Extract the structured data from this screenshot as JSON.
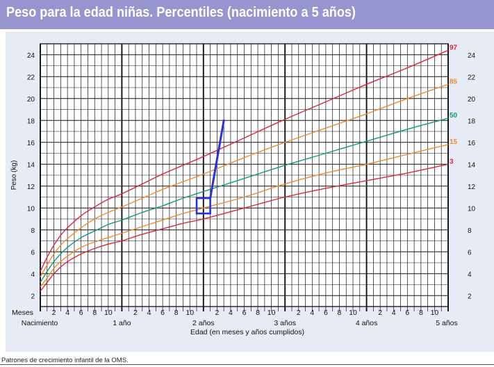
{
  "header": {
    "title": "Peso para la edad niñas. Percentiles (nacimiento a 5 años)"
  },
  "footer": {
    "source": "Patrones de crecimiento infantil de la OMS."
  },
  "colors": {
    "title_bg": "#9795cf",
    "panel_bg": "#e6ebf6",
    "p3": "#e0243c",
    "p15": "#ef8a2e",
    "p50": "#0f9b74",
    "p85": "#ef8a2e",
    "p97": "#e0243c",
    "annotation": "#2b2fd9"
  },
  "chart_data": {
    "type": "line",
    "title": "Peso para la edad niñas. Percentiles (nacimiento a 5 años)",
    "xlabel": "Edad (en meses y años cumplidos)",
    "ylabel": "Peso (kg)",
    "xlim": [
      0,
      60
    ],
    "ylim": [
      1,
      25
    ],
    "grid": true,
    "y_ticks": [
      2,
      4,
      6,
      8,
      10,
      12,
      14,
      16,
      18,
      20,
      22,
      24
    ],
    "x_month_ticks": [
      {
        "month": 2,
        "label": "2"
      },
      {
        "month": 4,
        "label": "4"
      },
      {
        "month": 6,
        "label": "6"
      },
      {
        "month": 8,
        "label": "8"
      },
      {
        "month": 10,
        "label": "10"
      },
      {
        "month": 14,
        "label": "2"
      },
      {
        "month": 16,
        "label": "4"
      },
      {
        "month": 18,
        "label": "6"
      },
      {
        "month": 20,
        "label": "8"
      },
      {
        "month": 22,
        "label": "10"
      },
      {
        "month": 26,
        "label": "2"
      },
      {
        "month": 28,
        "label": "4"
      },
      {
        "month": 30,
        "label": "6"
      },
      {
        "month": 32,
        "label": "8"
      },
      {
        "month": 34,
        "label": "10"
      },
      {
        "month": 38,
        "label": "2"
      },
      {
        "month": 40,
        "label": "4"
      },
      {
        "month": 42,
        "label": "6"
      },
      {
        "month": 44,
        "label": "8"
      },
      {
        "month": 46,
        "label": "10"
      },
      {
        "month": 50,
        "label": "2"
      },
      {
        "month": 52,
        "label": "4"
      },
      {
        "month": 54,
        "label": "6"
      },
      {
        "month": 56,
        "label": "8"
      },
      {
        "month": 58,
        "label": "10"
      }
    ],
    "x_month_row_label": "Meses",
    "x_year_ticks": [
      {
        "month": 0,
        "label": "Nacimiento"
      },
      {
        "month": 12,
        "label": "1 año"
      },
      {
        "month": 24,
        "label": "2 años"
      },
      {
        "month": 36,
        "label": "3 años"
      },
      {
        "month": 48,
        "label": "4 años"
      },
      {
        "month": 60,
        "label": "5 años"
      }
    ],
    "x": [
      0,
      1,
      2,
      3,
      4,
      6,
      8,
      10,
      12,
      15,
      18,
      21,
      24,
      30,
      36,
      42,
      48,
      54,
      60
    ],
    "series": [
      {
        "name": "3",
        "color_key": "p3",
        "values": [
          2.4,
          3.2,
          4.0,
          4.6,
          5.1,
          5.8,
          6.3,
          6.7,
          7.0,
          7.6,
          8.1,
          8.6,
          9.0,
          10.0,
          11.0,
          11.8,
          12.5,
          13.2,
          14.0
        ]
      },
      {
        "name": "15",
        "color_key": "p15",
        "values": [
          2.8,
          3.6,
          4.5,
          5.1,
          5.6,
          6.4,
          6.9,
          7.3,
          7.7,
          8.3,
          8.9,
          9.5,
          10.0,
          11.0,
          12.2,
          13.2,
          14.0,
          14.9,
          15.8
        ]
      },
      {
        "name": "50",
        "color_key": "p50",
        "values": [
          3.2,
          4.2,
          5.1,
          5.8,
          6.4,
          7.3,
          7.9,
          8.5,
          8.9,
          9.6,
          10.2,
          10.9,
          11.5,
          12.7,
          13.9,
          15.0,
          16.1,
          17.2,
          18.2
        ]
      },
      {
        "name": "85",
        "color_key": "p85",
        "values": [
          3.7,
          4.8,
          5.8,
          6.6,
          7.2,
          8.2,
          9.0,
          9.6,
          10.1,
          10.9,
          11.7,
          12.4,
          13.1,
          14.6,
          16.0,
          17.3,
          18.6,
          20.0,
          21.3
        ]
      },
      {
        "name": "97",
        "color_key": "p97",
        "values": [
          4.2,
          5.5,
          6.6,
          7.5,
          8.2,
          9.3,
          10.1,
          10.8,
          11.3,
          12.2,
          13.1,
          13.9,
          14.7,
          16.4,
          18.1,
          19.7,
          21.3,
          22.8,
          24.4
        ]
      }
    ],
    "annotations": {
      "box": {
        "x": [
          23,
          25
        ],
        "y": [
          9.5,
          10.9
        ]
      },
      "drawn_line": {
        "x": [
          25,
          27
        ],
        "y": [
          10.9,
          18.0
        ]
      }
    }
  }
}
